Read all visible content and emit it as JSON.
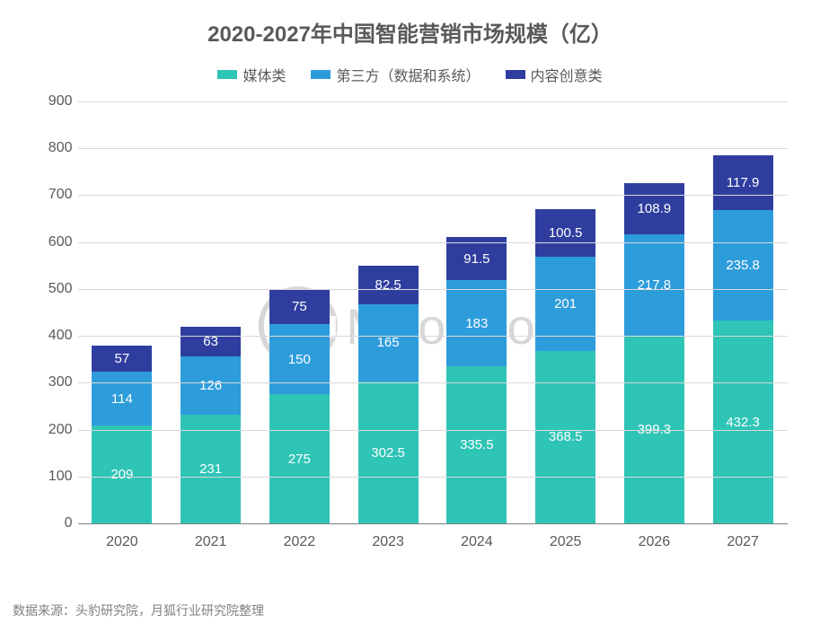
{
  "chart": {
    "type": "stacked-bar",
    "title": "2020-2027年中国智能营销市场规模（亿）",
    "title_fontsize": 24,
    "title_color": "#595959",
    "background_color": "#ffffff",
    "categories": [
      "2020",
      "2021",
      "2022",
      "2023",
      "2024",
      "2025",
      "2026",
      "2027"
    ],
    "series": [
      {
        "name": "媒体类",
        "color": "#2ec4b6",
        "values": [
          209,
          231,
          275,
          302.5,
          335.5,
          368.5,
          399.3,
          432.3
        ]
      },
      {
        "name": "第三方（数据和系统）",
        "color": "#2d9cdb",
        "values": [
          114,
          126,
          150,
          165,
          183,
          201,
          217.8,
          235.8
        ]
      },
      {
        "name": "内容创意类",
        "color": "#2f3e9e",
        "values": [
          57,
          63,
          75,
          82.5,
          91.5,
          100.5,
          108.9,
          117.9
        ]
      }
    ],
    "yaxis": {
      "min": 0,
      "max": 900,
      "step": 100,
      "tick_color": "#595959",
      "tick_fontsize": 16
    },
    "xaxis": {
      "tick_color": "#595959",
      "tick_fontsize": 16
    },
    "grid_color": "#d9d9d9",
    "axis_line_color": "#808080",
    "bar_width_ratio": 0.68,
    "datalabel_color": "#ffffff",
    "datalabel_fontsize": 15,
    "legend": {
      "position": "top",
      "fontsize": 16,
      "swatch_w": 22,
      "swatch_h": 10,
      "text_color": "#595959"
    }
  },
  "watermark": {
    "text": "MoonFox",
    "fontsize": 56,
    "color": "#b8b8b8",
    "ring_size": 88
  },
  "source": {
    "label": "数据来源：头豹研究院，月狐行业研究院整理",
    "fontsize": 14,
    "color": "#808080"
  }
}
